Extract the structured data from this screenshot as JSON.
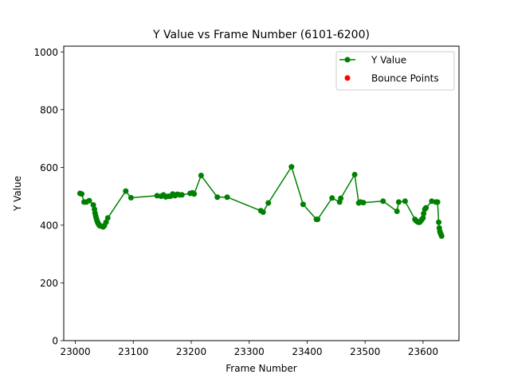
{
  "chart_data": {
    "type": "line",
    "title": "Y Value vs Frame Number (6101-6200)",
    "xlabel": "Frame Number",
    "ylabel": "Y Value",
    "xlim": [
      22980,
      23662
    ],
    "ylim": [
      0,
      1020
    ],
    "xticks": [
      23000,
      23100,
      23200,
      23300,
      23400,
      23500,
      23600
    ],
    "yticks": [
      0,
      200,
      400,
      600,
      800,
      1000
    ],
    "legend_position": "upper right",
    "grid": false,
    "series": [
      {
        "name": "Y Value",
        "color": "#008000",
        "marker": "circle",
        "x": [
          23008,
          23011,
          23015,
          23019,
          23024,
          23031,
          23033,
          23034,
          23035,
          23036,
          23037,
          23038,
          23039,
          23040,
          23041,
          23042,
          23044,
          23046,
          23048,
          23050,
          23053,
          23056,
          23087,
          23096,
          23141,
          23148,
          23152,
          23156,
          23160,
          23164,
          23168,
          23172,
          23176,
          23180,
          23184,
          23198,
          23202,
          23205,
          23217,
          23245,
          23262,
          23320,
          23324,
          23333,
          23373,
          23393,
          23416,
          23418,
          23443,
          23456,
          23458,
          23482,
          23489,
          23492,
          23497,
          23531,
          23555,
          23558,
          23569,
          23586,
          23588,
          23590,
          23592,
          23594,
          23596,
          23598,
          23600,
          23601,
          23603,
          23605,
          23615,
          23622,
          23625,
          23627,
          23628,
          23629,
          23630,
          23631,
          23632
        ],
        "y": [
          510,
          508,
          480,
          480,
          485,
          470,
          455,
          442,
          433,
          425,
          418,
          412,
          408,
          404,
          400,
          398,
          397,
          396,
          394,
          398,
          410,
          425,
          518,
          495,
          502,
          500,
          505,
          498,
          500,
          500,
          508,
          502,
          507,
          505,
          505,
          510,
          512,
          508,
          572,
          497,
          497,
          450,
          445,
          477,
          602,
          472,
          420,
          420,
          494,
          480,
          493,
          575,
          477,
          480,
          478,
          483,
          448,
          480,
          483,
          420,
          415,
          412,
          410,
          410,
          414,
          420,
          425,
          440,
          455,
          460,
          483,
          480,
          480,
          410,
          390,
          378,
          372,
          368,
          362
        ]
      },
      {
        "name": "Bounce Points",
        "color": "#ff0000",
        "marker": "circle",
        "x": [],
        "y": []
      }
    ]
  }
}
